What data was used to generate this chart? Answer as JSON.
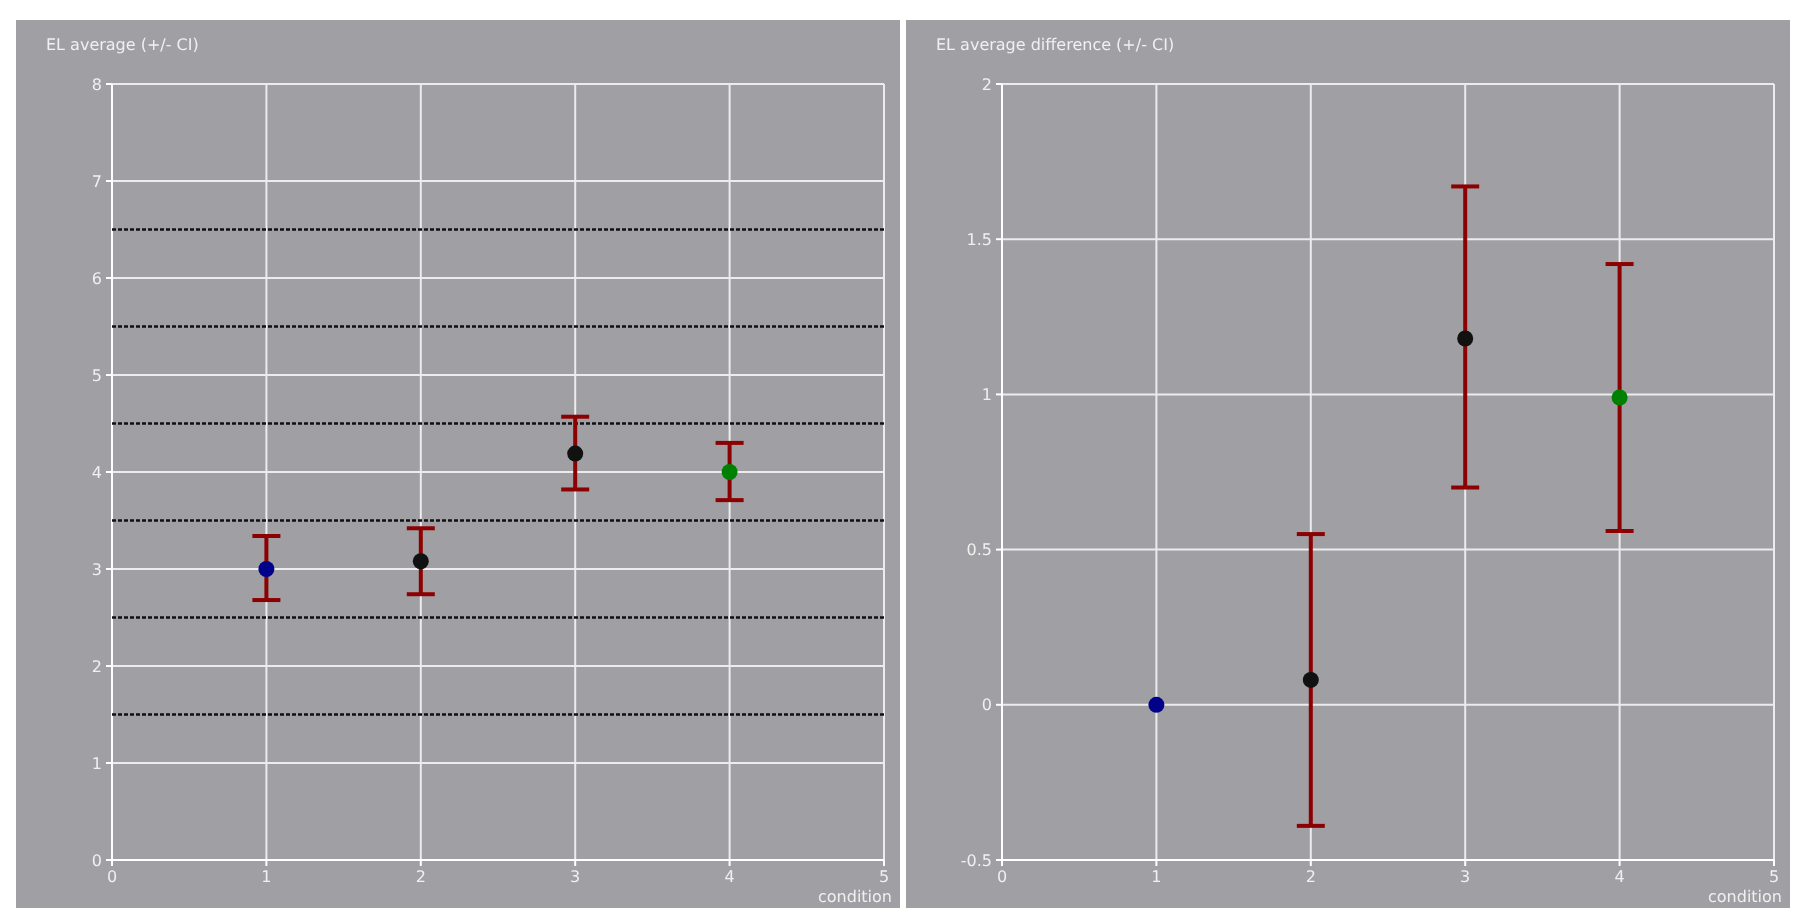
{
  "chart_data": [
    {
      "type": "scatter",
      "title": "EL average (+/- CI)",
      "xlabel": "condition",
      "x": [
        1,
        2,
        3,
        4
      ],
      "values": [
        3.0,
        3.08,
        4.19,
        4.0
      ],
      "colors": [
        "#00008b",
        "#111111",
        "#111111",
        "#008000"
      ],
      "errors": [
        [
          2.68,
          3.34
        ],
        [
          2.74,
          3.42
        ],
        [
          3.82,
          4.57
        ],
        [
          3.71,
          4.3
        ]
      ],
      "xlim": [
        0,
        5
      ],
      "xticks": [
        0,
        1,
        2,
        3,
        4,
        5
      ],
      "ylim": [
        0,
        8
      ],
      "yticks": [
        0,
        1,
        2,
        3,
        4,
        5,
        6,
        7,
        8
      ],
      "grid": true,
      "marker": "circle",
      "ref_lines": [
        {
          "axis": "y",
          "value": 1.5,
          "color": "#111111",
          "line_style": "dotted"
        },
        {
          "axis": "y",
          "value": 2.5,
          "color": "#111111",
          "line_style": "dotted"
        },
        {
          "axis": "y",
          "value": 3.5,
          "color": "#111111",
          "line_style": "dotted"
        },
        {
          "axis": "y",
          "value": 4.5,
          "color": "#111111",
          "line_style": "dotted"
        },
        {
          "axis": "y",
          "value": 5.5,
          "color": "#111111",
          "line_style": "dotted"
        },
        {
          "axis": "y",
          "value": 6.5,
          "color": "#111111",
          "line_style": "dotted"
        }
      ]
    },
    {
      "type": "scatter",
      "title": "EL average difference (+/- CI)",
      "xlabel": "condition",
      "x": [
        1,
        2,
        3,
        4
      ],
      "values": [
        0.0,
        0.08,
        1.18,
        0.99
      ],
      "colors": [
        "#00008b",
        "#111111",
        "#111111",
        "#008000"
      ],
      "errors": [
        null,
        [
          -0.39,
          0.55
        ],
        [
          0.7,
          1.67
        ],
        [
          0.56,
          1.42
        ]
      ],
      "xlim": [
        0,
        5
      ],
      "xticks": [
        0,
        1,
        2,
        3,
        4,
        5
      ],
      "ylim": [
        -0.5,
        2
      ],
      "yticks": [
        -0.5,
        0,
        0.5,
        1,
        1.5,
        2
      ],
      "grid": true,
      "marker": "circle"
    }
  ]
}
